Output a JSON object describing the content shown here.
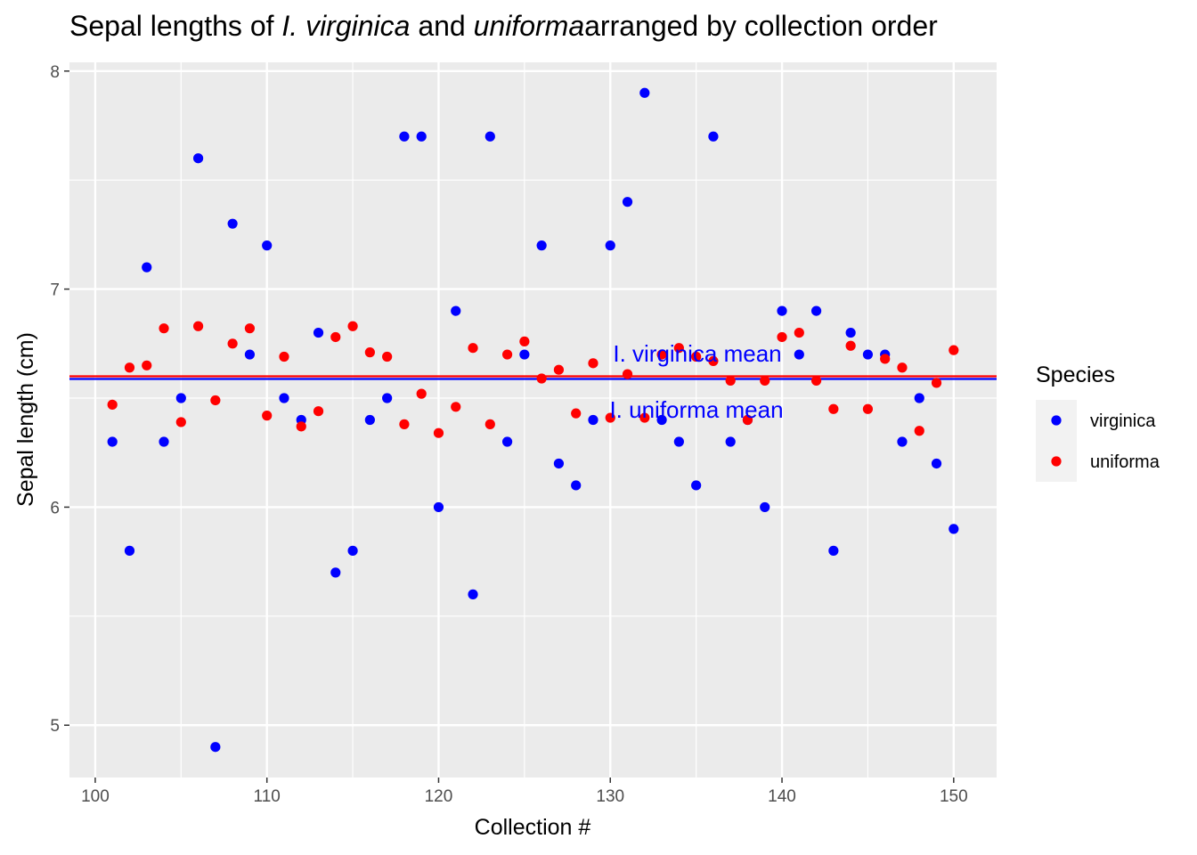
{
  "chart_data": {
    "type": "scatter",
    "title": {
      "parts": [
        {
          "text": "Sepal lengths of ",
          "italic": false
        },
        {
          "text": "I. virginica",
          "italic": true
        },
        {
          "text": " and ",
          "italic": false
        },
        {
          "text": "uniforma",
          "italic": true
        },
        {
          "text": "arranged by collection order",
          "italic": false
        }
      ]
    },
    "xlabel": "Collection #",
    "ylabel": "Sepal length (cm)",
    "xlim": [
      98.5,
      152.5
    ],
    "ylim": [
      4.76,
      8.04
    ],
    "x_ticks": [
      100,
      110,
      120,
      130,
      140,
      150
    ],
    "x_tick_labels": [
      "100",
      "110",
      "120",
      "130",
      "140",
      "150"
    ],
    "y_ticks": [
      5,
      6,
      7,
      8
    ],
    "y_tick_labels": [
      "5",
      "6",
      "7",
      "8"
    ],
    "grid": true,
    "background": "#ebebeb",
    "legend": {
      "title": "Species",
      "position": "right",
      "entries": [
        {
          "label": "virginica",
          "color": "#0000ff"
        },
        {
          "label": "uniforma",
          "color": "#ff0000"
        }
      ]
    },
    "series": [
      {
        "name": "virginica",
        "color": "#0000ff",
        "x": [
          101,
          102,
          103,
          104,
          105,
          106,
          107,
          108,
          109,
          110,
          111,
          112,
          113,
          114,
          115,
          116,
          117,
          118,
          119,
          120,
          121,
          122,
          123,
          124,
          125,
          126,
          127,
          128,
          129,
          130,
          131,
          132,
          133,
          134,
          135,
          136,
          137,
          138,
          139,
          140,
          141,
          142,
          143,
          144,
          145,
          146,
          147,
          148,
          149,
          150
        ],
        "y": [
          6.3,
          5.8,
          7.1,
          6.3,
          6.5,
          7.6,
          4.9,
          7.3,
          6.7,
          7.2,
          6.5,
          6.4,
          6.8,
          5.7,
          5.8,
          6.4,
          6.5,
          7.7,
          7.7,
          6.0,
          6.9,
          5.6,
          7.7,
          6.3,
          6.7,
          7.2,
          6.2,
          6.1,
          6.4,
          7.2,
          7.4,
          7.9,
          6.4,
          6.3,
          6.1,
          7.7,
          6.3,
          6.4,
          6.0,
          6.9,
          6.7,
          6.9,
          5.8,
          6.8,
          6.7,
          6.7,
          6.3,
          6.5,
          6.2,
          5.9
        ]
      },
      {
        "name": "uniforma",
        "color": "#ff0000",
        "x": [
          101,
          102,
          103,
          104,
          105,
          106,
          107,
          108,
          109,
          110,
          111,
          112,
          113,
          114,
          115,
          116,
          117,
          118,
          119,
          120,
          121,
          122,
          123,
          124,
          125,
          126,
          127,
          128,
          129,
          130,
          131,
          132,
          133,
          134,
          135,
          136,
          137,
          138,
          139,
          140,
          141,
          142,
          143,
          144,
          145,
          146,
          147,
          148,
          149,
          150
        ],
        "y": [
          6.47,
          6.64,
          6.65,
          6.82,
          6.39,
          6.83,
          6.49,
          6.75,
          6.82,
          6.42,
          6.69,
          6.37,
          6.44,
          6.78,
          6.83,
          6.71,
          6.69,
          6.38,
          6.52,
          6.34,
          6.46,
          6.73,
          6.38,
          6.7,
          6.76,
          6.59,
          6.63,
          6.43,
          6.66,
          6.41,
          6.61,
          6.41,
          6.7,
          6.73,
          6.69,
          6.67,
          6.58,
          6.4,
          6.58,
          6.78,
          6.8,
          6.58,
          6.45,
          6.74,
          6.45,
          6.68,
          6.64,
          6.35,
          6.57,
          6.72
        ]
      }
    ],
    "reference_lines": [
      {
        "label": "I. virginica mean",
        "value": 6.588,
        "color": "#0000ff",
        "line_color": "#0000ff"
      },
      {
        "label": "I. uniforma mean",
        "value": 6.6,
        "color": "#0000ff",
        "line_color": "#ff0000"
      }
    ]
  }
}
